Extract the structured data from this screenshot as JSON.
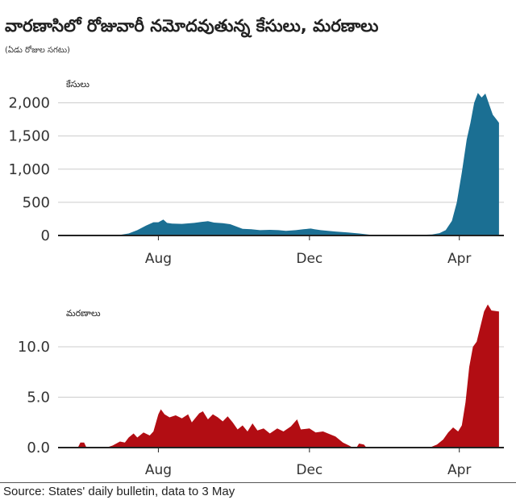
{
  "title": "వారణాసిలో రోజువారీ నమోదవుతున్న కేసులు, మరణాలు",
  "subtitle": "(ఏడు రోజుల సగటు)",
  "source": "Source: States' daily bulletin, data to 3 May",
  "colors": {
    "cases": "#1b6f93",
    "deaths": "#b20d13"
  },
  "chart_data": [
    {
      "type": "area",
      "ylabel": "కేసులు",
      "ylim": [
        0,
        2200
      ],
      "yticks": [
        0,
        500,
        1000,
        1500,
        2000
      ],
      "ytick_labels": [
        "0",
        "500",
        "1,000",
        "1,500",
        "2,000"
      ],
      "xlim": [
        "2020-05-12",
        "2021-05-07"
      ],
      "xticks": [
        "2020-08-01",
        "2020-12-01",
        "2021-04-01"
      ],
      "xtick_labels": [
        "Aug",
        "Dec",
        "Apr"
      ],
      "series": [
        {
          "points": [
            [
              "2020-05-12",
              0
            ],
            [
              "2020-06-15",
              0
            ],
            [
              "2020-06-25",
              3
            ],
            [
              "2020-07-01",
              10
            ],
            [
              "2020-07-08",
              30
            ],
            [
              "2020-07-15",
              80
            ],
            [
              "2020-07-22",
              150
            ],
            [
              "2020-07-28",
              200
            ],
            [
              "2020-08-01",
              200
            ],
            [
              "2020-08-05",
              240
            ],
            [
              "2020-08-08",
              190
            ],
            [
              "2020-08-12",
              180
            ],
            [
              "2020-08-20",
              175
            ],
            [
              "2020-08-30",
              190
            ],
            [
              "2020-09-05",
              205
            ],
            [
              "2020-09-10",
              215
            ],
            [
              "2020-09-15",
              195
            ],
            [
              "2020-09-22",
              185
            ],
            [
              "2020-09-28",
              170
            ],
            [
              "2020-10-03",
              135
            ],
            [
              "2020-10-08",
              100
            ],
            [
              "2020-10-15",
              95
            ],
            [
              "2020-10-22",
              80
            ],
            [
              "2020-10-30",
              85
            ],
            [
              "2020-11-06",
              80
            ],
            [
              "2020-11-12",
              70
            ],
            [
              "2020-11-20",
              80
            ],
            [
              "2020-11-26",
              95
            ],
            [
              "2020-12-02",
              105
            ],
            [
              "2020-12-05",
              95
            ],
            [
              "2020-12-10",
              80
            ],
            [
              "2020-12-16",
              70
            ],
            [
              "2020-12-22",
              60
            ],
            [
              "2021-01-01",
              45
            ],
            [
              "2021-01-10",
              30
            ],
            [
              "2021-01-20",
              10
            ],
            [
              "2021-02-01",
              5
            ],
            [
              "2021-02-15",
              3
            ],
            [
              "2021-03-01",
              8
            ],
            [
              "2021-03-10",
              15
            ],
            [
              "2021-03-16",
              35
            ],
            [
              "2021-03-21",
              80
            ],
            [
              "2021-03-26",
              220
            ],
            [
              "2021-03-30",
              500
            ],
            [
              "2021-04-03",
              950
            ],
            [
              "2021-04-07",
              1450
            ],
            [
              "2021-04-10",
              1700
            ],
            [
              "2021-04-13",
              2000
            ],
            [
              "2021-04-16",
              2150
            ],
            [
              "2021-04-19",
              2080
            ],
            [
              "2021-04-22",
              2140
            ],
            [
              "2021-04-25",
              1980
            ],
            [
              "2021-04-28",
              1820
            ],
            [
              "2021-05-01",
              1750
            ],
            [
              "2021-05-03",
              1700
            ]
          ]
        }
      ]
    },
    {
      "type": "area",
      "ylabel": "మరణాలు",
      "ylim": [
        0,
        15
      ],
      "yticks": [
        0,
        5,
        10
      ],
      "ytick_labels": [
        "0.0",
        "5.0",
        "10.0"
      ],
      "xlim": [
        "2020-05-12",
        "2021-05-07"
      ],
      "xticks": [
        "2020-08-01",
        "2020-12-01",
        "2021-04-01"
      ],
      "xtick_labels": [
        "Aug",
        "Dec",
        "Apr"
      ],
      "series": [
        {
          "points": [
            [
              "2020-05-12",
              0
            ],
            [
              "2020-05-28",
              0
            ],
            [
              "2020-05-30",
              0.5
            ],
            [
              "2020-06-02",
              0.5
            ],
            [
              "2020-06-04",
              0
            ],
            [
              "2020-06-20",
              0
            ],
            [
              "2020-06-25",
              0.2
            ],
            [
              "2020-07-01",
              0.6
            ],
            [
              "2020-07-05",
              0.5
            ],
            [
              "2020-07-08",
              1.0
            ],
            [
              "2020-07-12",
              1.4
            ],
            [
              "2020-07-15",
              1.0
            ],
            [
              "2020-07-20",
              1.5
            ],
            [
              "2020-07-25",
              1.2
            ],
            [
              "2020-07-28",
              1.6
            ],
            [
              "2020-08-01",
              3.3
            ],
            [
              "2020-08-03",
              3.8
            ],
            [
              "2020-08-06",
              3.3
            ],
            [
              "2020-08-10",
              3.0
            ],
            [
              "2020-08-15",
              3.2
            ],
            [
              "2020-08-20",
              2.9
            ],
            [
              "2020-08-25",
              3.3
            ],
            [
              "2020-08-28",
              2.5
            ],
            [
              "2020-09-03",
              3.4
            ],
            [
              "2020-09-06",
              3.6
            ],
            [
              "2020-09-10",
              2.8
            ],
            [
              "2020-09-14",
              3.3
            ],
            [
              "2020-09-18",
              3.0
            ],
            [
              "2020-09-22",
              2.6
            ],
            [
              "2020-09-26",
              3.1
            ],
            [
              "2020-09-30",
              2.5
            ],
            [
              "2020-10-04",
              1.8
            ],
            [
              "2020-10-08",
              2.2
            ],
            [
              "2020-10-12",
              1.6
            ],
            [
              "2020-10-16",
              2.4
            ],
            [
              "2020-10-20",
              1.7
            ],
            [
              "2020-10-25",
              1.9
            ],
            [
              "2020-10-30",
              1.4
            ],
            [
              "2020-11-05",
              1.9
            ],
            [
              "2020-11-10",
              1.6
            ],
            [
              "2020-11-16",
              2.1
            ],
            [
              "2020-11-21",
              2.8
            ],
            [
              "2020-11-24",
              1.8
            ],
            [
              "2020-12-01",
              1.9
            ],
            [
              "2020-12-06",
              1.5
            ],
            [
              "2020-12-12",
              1.6
            ],
            [
              "2020-12-18",
              1.3
            ],
            [
              "2020-12-22",
              1.1
            ],
            [
              "2020-12-28",
              0.5
            ],
            [
              "2021-01-02",
              0.2
            ],
            [
              "2021-01-05",
              0
            ],
            [
              "2021-01-08",
              0
            ],
            [
              "2021-01-10",
              0.4
            ],
            [
              "2021-01-14",
              0.3
            ],
            [
              "2021-01-16",
              0
            ],
            [
              "2021-03-08",
              0
            ],
            [
              "2021-03-14",
              0.3
            ],
            [
              "2021-03-19",
              0.8
            ],
            [
              "2021-03-23",
              1.5
            ],
            [
              "2021-03-27",
              2.0
            ],
            [
              "2021-03-31",
              1.6
            ],
            [
              "2021-04-03",
              2.2
            ],
            [
              "2021-04-06",
              4.5
            ],
            [
              "2021-04-09",
              8.0
            ],
            [
              "2021-04-12",
              10.0
            ],
            [
              "2021-04-15",
              10.5
            ],
            [
              "2021-04-18",
              12.0
            ],
            [
              "2021-04-21",
              13.5
            ],
            [
              "2021-04-24",
              14.2
            ],
            [
              "2021-04-27",
              13.6
            ],
            [
              "2021-05-03",
              13.5
            ]
          ]
        }
      ]
    }
  ]
}
